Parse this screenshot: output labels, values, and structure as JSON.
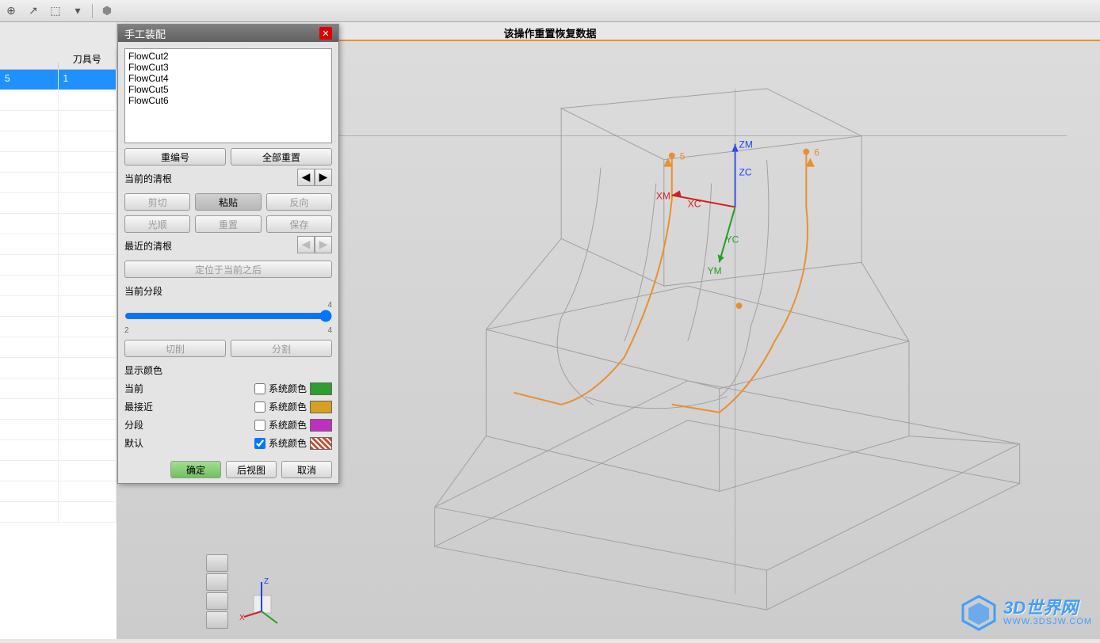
{
  "toolbar": {
    "icons": [
      "⊕",
      "↗",
      "⬚",
      "▦",
      "⬢"
    ]
  },
  "status_message": "该操作重置恢复数据",
  "left_panel": {
    "header": "刀具号",
    "rows": [
      {
        "c1": "5",
        "c2": "1",
        "selected": true
      },
      {
        "c1": "",
        "c2": "",
        "selected": false
      },
      {
        "c1": "",
        "c2": "",
        "selected": false
      },
      {
        "c1": "",
        "c2": "",
        "selected": false
      },
      {
        "c1": "",
        "c2": "",
        "selected": false
      },
      {
        "c1": "",
        "c2": "",
        "selected": false
      },
      {
        "c1": "",
        "c2": "",
        "selected": false
      },
      {
        "c1": "",
        "c2": "",
        "selected": false
      },
      {
        "c1": "",
        "c2": "",
        "selected": false
      },
      {
        "c1": "",
        "c2": "",
        "selected": false
      },
      {
        "c1": "",
        "c2": "",
        "selected": false
      },
      {
        "c1": "",
        "c2": "",
        "selected": false
      },
      {
        "c1": "",
        "c2": "",
        "selected": false
      },
      {
        "c1": "",
        "c2": "",
        "selected": false
      },
      {
        "c1": "",
        "c2": "",
        "selected": false
      },
      {
        "c1": "",
        "c2": "",
        "selected": false
      },
      {
        "c1": "",
        "c2": "",
        "selected": false
      },
      {
        "c1": "",
        "c2": "",
        "selected": false
      },
      {
        "c1": "",
        "c2": "",
        "selected": false
      },
      {
        "c1": "",
        "c2": "",
        "selected": false
      },
      {
        "c1": "",
        "c2": "",
        "selected": false
      },
      {
        "c1": "",
        "c2": "",
        "selected": false
      }
    ]
  },
  "dialog": {
    "title": "手工装配",
    "list_items": [
      "FlowCut2",
      "FlowCut3",
      "FlowCut4",
      "FlowCut5",
      "FlowCut6"
    ],
    "btn_renumber": "重编号",
    "btn_reset_all": "全部重置",
    "label_current": "当前的清根",
    "btn_cut": "剪切",
    "btn_paste": "粘贴",
    "btn_reverse": "反向",
    "btn_smooth": "光顺",
    "btn_reset": "重置",
    "btn_save": "保存",
    "label_recent": "最近的清根",
    "btn_position_after": "定位于当前之后",
    "label_segment": "当前分段",
    "slider_min": "2",
    "slider_max": "4",
    "slider_top": "4",
    "btn_cutop": "切削",
    "btn_split": "分割",
    "label_colors": "显示颜色",
    "color_rows": [
      {
        "label": "当前",
        "chk_label": "系统颜色",
        "color": "#2e9e2e",
        "checked": false
      },
      {
        "label": "最接近",
        "chk_label": "系统颜色",
        "color": "#d8a020",
        "checked": false
      },
      {
        "label": "分段",
        "chk_label": "系统颜色",
        "color": "#c030c0",
        "checked": false
      },
      {
        "label": "默认",
        "chk_label": "系统颜色",
        "color": "#c05030",
        "checked": true,
        "hatched": true
      }
    ],
    "btn_ok": "确定",
    "btn_back": "后视图",
    "btn_cancel": "取消"
  },
  "viewport": {
    "wireframe_color": "#a0a0a0",
    "toolpath_color": "#e89030",
    "axes": {
      "zm": {
        "label": "ZM",
        "color": "#2040ff"
      },
      "zc": {
        "label": "ZC",
        "color": "#2040ff"
      },
      "xm": {
        "label": "XM",
        "color": "#d02020"
      },
      "xc": {
        "label": "XC",
        "color": "#d02020"
      },
      "ym": {
        "label": "YM",
        "color": "#20a020"
      },
      "yc": {
        "label": "YC",
        "color": "#20a020"
      }
    },
    "path_labels": {
      "l5": "5",
      "l6": "6"
    }
  },
  "triad": {
    "x": "X",
    "z": "Z"
  },
  "watermark": {
    "main": "3D世界网",
    "sub": "WWW.3DSJW.COM"
  }
}
